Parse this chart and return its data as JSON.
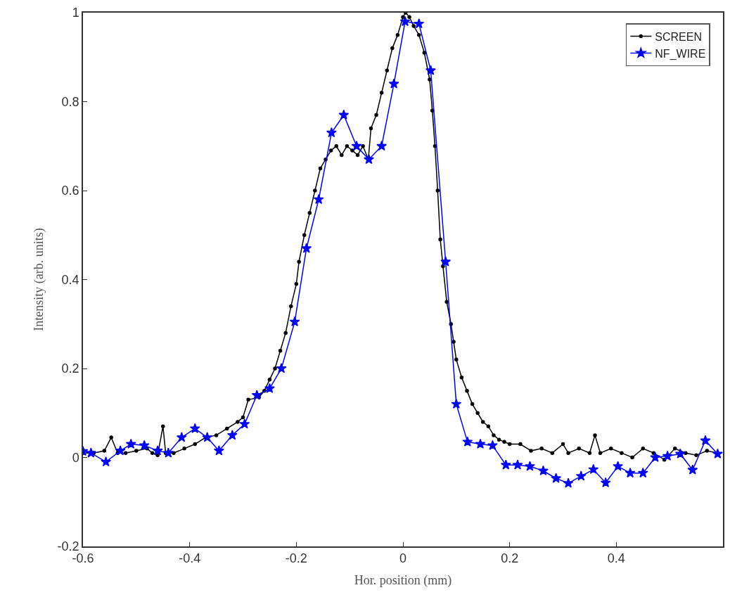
{
  "chart_data": {
    "type": "line",
    "xlabel": "Hor. position (mm)",
    "ylabel": "Intensity (arb. units)",
    "xlim": [
      -0.6,
      0.6
    ],
    "xticks": [
      -0.6,
      -0.4,
      -0.2,
      0,
      0.2,
      0.4
    ],
    "ylim": [
      -0.2,
      1
    ],
    "yticks": [
      -0.2,
      0,
      0.2,
      0.4,
      0.6,
      0.8,
      1
    ],
    "legend": "top right",
    "series": [
      {
        "name": "SCREEN",
        "color": "#000000",
        "marker": "circle",
        "x": [
          -0.6,
          -0.58,
          -0.56,
          -0.547,
          -0.535,
          -0.52,
          -0.5,
          -0.48,
          -0.47,
          -0.46,
          -0.45,
          -0.445,
          -0.43,
          -0.41,
          -0.39,
          -0.37,
          -0.35,
          -0.33,
          -0.31,
          -0.3,
          -0.29,
          -0.27,
          -0.26,
          -0.25,
          -0.24,
          -0.23,
          -0.22,
          -0.21,
          -0.2,
          -0.195,
          -0.185,
          -0.175,
          -0.165,
          -0.155,
          -0.145,
          -0.135,
          -0.125,
          -0.115,
          -0.105,
          -0.095,
          -0.085,
          -0.075,
          -0.065,
          -0.06,
          -0.05,
          -0.04,
          -0.03,
          -0.02,
          -0.01,
          0.0,
          0.005,
          0.012,
          0.02,
          0.03,
          0.04,
          0.05,
          0.055,
          0.06,
          0.065,
          0.07,
          0.075,
          0.082,
          0.09,
          0.095,
          0.1,
          0.11,
          0.12,
          0.13,
          0.14,
          0.15,
          0.16,
          0.17,
          0.18,
          0.19,
          0.2,
          0.22,
          0.24,
          0.26,
          0.28,
          0.3,
          0.31,
          0.33,
          0.35,
          0.36,
          0.37,
          0.39,
          0.41,
          0.43,
          0.45,
          0.47,
          0.49,
          0.51,
          0.53,
          0.55,
          0.57,
          0.59
        ],
        "values": [
          0.01,
          0.01,
          0.015,
          0.045,
          0.01,
          0.01,
          0.015,
          0.02,
          0.01,
          0.005,
          0.07,
          0.01,
          0.01,
          0.02,
          0.03,
          0.045,
          0.05,
          0.065,
          0.08,
          0.09,
          0.13,
          0.135,
          0.15,
          0.175,
          0.2,
          0.24,
          0.28,
          0.34,
          0.39,
          0.44,
          0.5,
          0.55,
          0.6,
          0.65,
          0.67,
          0.69,
          0.7,
          0.68,
          0.7,
          0.69,
          0.68,
          0.7,
          0.67,
          0.74,
          0.77,
          0.82,
          0.87,
          0.92,
          0.95,
          0.99,
          1.0,
          0.99,
          0.97,
          0.95,
          0.91,
          0.85,
          0.78,
          0.7,
          0.6,
          0.49,
          0.43,
          0.35,
          0.3,
          0.26,
          0.22,
          0.18,
          0.15,
          0.12,
          0.1,
          0.08,
          0.07,
          0.05,
          0.04,
          0.035,
          0.03,
          0.03,
          0.015,
          0.02,
          0.01,
          0.03,
          0.01,
          0.02,
          0.01,
          0.05,
          0.01,
          0.02,
          0.01,
          0.0,
          0.02,
          0.01,
          -0.005,
          0.02,
          0.01,
          0.005,
          0.015,
          0.01
        ]
      },
      {
        "name": "NF_WIRE",
        "color": "#0000ff",
        "marker": "star",
        "x": [
          -0.6,
          -0.585,
          -0.557,
          -0.53,
          -0.51,
          -0.485,
          -0.46,
          -0.44,
          -0.415,
          -0.39,
          -0.367,
          -0.345,
          -0.32,
          -0.297,
          -0.274,
          -0.25,
          -0.228,
          -0.203,
          -0.181,
          -0.158,
          -0.134,
          -0.111,
          -0.087,
          -0.064,
          -0.04,
          -0.017,
          0.004,
          0.03,
          0.052,
          0.08,
          0.1,
          0.121,
          0.145,
          0.168,
          0.193,
          0.215,
          0.238,
          0.263,
          0.287,
          0.31,
          0.334,
          0.357,
          0.38,
          0.403,
          0.426,
          0.45,
          0.473,
          0.496,
          0.52,
          0.543,
          0.567,
          0.59
        ],
        "values": [
          0.014,
          0.01,
          -0.01,
          0.015,
          0.03,
          0.027,
          0.015,
          0.01,
          0.045,
          0.065,
          0.045,
          0.015,
          0.05,
          0.075,
          0.14,
          0.155,
          0.2,
          0.305,
          0.47,
          0.58,
          0.73,
          0.77,
          0.7,
          0.67,
          0.7,
          0.84,
          0.98,
          0.975,
          0.87,
          0.44,
          0.12,
          0.035,
          0.03,
          0.027,
          -0.017,
          -0.017,
          -0.02,
          -0.03,
          -0.047,
          -0.058,
          -0.042,
          -0.027,
          -0.057,
          -0.02,
          -0.035,
          -0.035,
          0.0,
          0.003,
          0.008,
          -0.028,
          0.038,
          0.008
        ]
      }
    ]
  }
}
